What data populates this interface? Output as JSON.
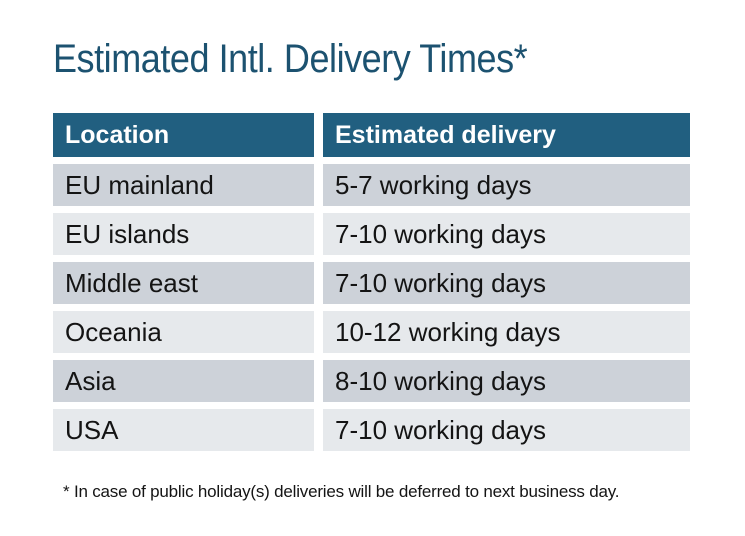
{
  "chart_data": {
    "type": "table",
    "title": "Estimated Intl. Delivery Times*",
    "columns": [
      "Location",
      "Estimated delivery"
    ],
    "rows": [
      [
        "EU mainland",
        "5-7 working days"
      ],
      [
        "EU islands",
        "7-10 working days"
      ],
      [
        "Middle east",
        "7-10 working days"
      ],
      [
        "Oceania",
        "10-12 working days"
      ],
      [
        "Asia",
        "8-10 working days"
      ],
      [
        "USA",
        "7-10 working days"
      ]
    ],
    "footnote": "* In case of public holiday(s) deliveries will be deferred to next business day.",
    "layout_hints": {
      "header_position": "top",
      "row_striping": "dark-light-alternating starting dark",
      "grid": "white gutters between all cells, no borders"
    }
  },
  "colors": {
    "title": "#1C5270",
    "header_bg": "#215F80",
    "header_text": "#FFFFFF",
    "row_dark": "#CDD2D9",
    "row_light": "#E6E9EC",
    "body_text": "#141414",
    "page_bg": "#FFFFFF"
  }
}
